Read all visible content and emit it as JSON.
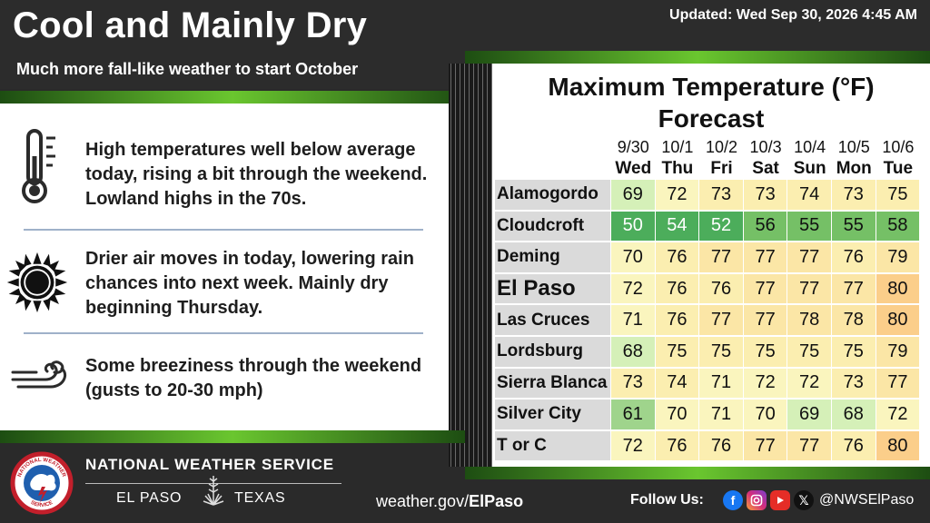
{
  "header": {
    "title": "Cool and Mainly Dry",
    "subtitle": "Much more fall-like weather to start October",
    "updated": "Updated: Wed Sep 30, 2026 4:45 AM"
  },
  "points": [
    {
      "icon": "thermometer-icon",
      "text": "High temperatures well below average today, rising a bit through the weekend. Lowland highs in the 70s."
    },
    {
      "icon": "sun-icon",
      "text": "Drier air moves in today, lowering rain chances into next week. Mainly dry beginning Thursday."
    },
    {
      "icon": "wind-icon",
      "text": "Some breeziness through the weekend (gusts to 20-30 mph)"
    }
  ],
  "table": {
    "title_line1": "Maximum Temperature (°F)",
    "title_line2": "Forecast",
    "dates": [
      "9/30",
      "10/1",
      "10/2",
      "10/3",
      "10/4",
      "10/5",
      "10/6"
    ],
    "days": [
      "Wed",
      "Thu",
      "Fri",
      "Sat",
      "Sun",
      "Mon",
      "Tue"
    ],
    "rows": [
      {
        "city": "Alamogordo",
        "values": [
          69,
          72,
          73,
          73,
          74,
          73,
          75
        ]
      },
      {
        "city": "Cloudcroft",
        "values": [
          50,
          54,
          52,
          56,
          55,
          55,
          58
        ]
      },
      {
        "city": "Deming",
        "values": [
          70,
          76,
          77,
          77,
          77,
          76,
          79
        ]
      },
      {
        "city": "El Paso",
        "values": [
          72,
          76,
          76,
          77,
          77,
          77,
          80
        ]
      },
      {
        "city": "Las Cruces",
        "values": [
          71,
          76,
          77,
          77,
          78,
          78,
          80
        ]
      },
      {
        "city": "Lordsburg",
        "values": [
          68,
          75,
          75,
          75,
          75,
          75,
          79
        ]
      },
      {
        "city": "Sierra Blanca",
        "values": [
          73,
          74,
          71,
          72,
          72,
          73,
          77
        ]
      },
      {
        "city": "Silver City",
        "values": [
          61,
          70,
          71,
          70,
          69,
          68,
          72
        ]
      },
      {
        "city": "T or C",
        "values": [
          72,
          76,
          76,
          77,
          77,
          76,
          80
        ]
      }
    ]
  },
  "footer": {
    "agency": "NATIONAL WEATHER SERVICE",
    "office_city": "EL PASO",
    "office_state": "TEXAS",
    "website_prefix": "weather.gov/",
    "website_bold": "ElPaso",
    "follow_label": "Follow Us:",
    "handle": "@NWSElPaso",
    "logo_text_top": "NATIONAL WEATHER",
    "logo_text_bottom": "SERVICE",
    "social_icons": [
      "facebook-icon",
      "instagram-icon",
      "youtube-icon",
      "x-icon"
    ]
  }
}
